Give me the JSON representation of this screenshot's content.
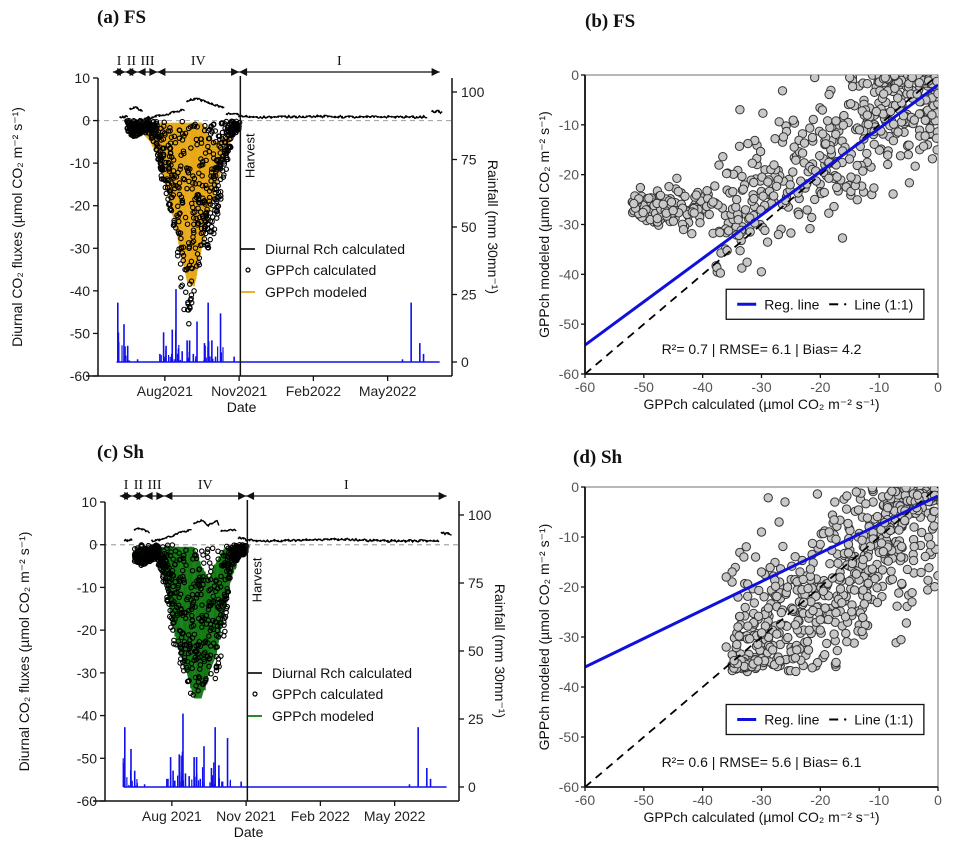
{
  "figure": {
    "panels": [
      {
        "id": "a",
        "title": "(a) FS"
      },
      {
        "id": "b",
        "title": "(b) FS"
      },
      {
        "id": "c",
        "title": "(c) Sh"
      },
      {
        "id": "d",
        "title": "(d) Sh"
      }
    ]
  },
  "colors": {
    "rch": "#000000",
    "gpp_calc_edge": "#000000",
    "gpp_model_fs": "#E8A917",
    "gpp_model_sh": "#137A13",
    "rainfall": "#1010EE",
    "reg_line": "#1010DD",
    "scatter_fill": "#C8C8C8",
    "scatter_edge": "#333333",
    "zero_line": "#AAAAAA"
  },
  "chart_data": [
    {
      "id": "a",
      "type": "line",
      "title": "(a) FS",
      "xlabel": "Date",
      "ylabel": "Diurnal CO₂ fluxes (µmol CO₂ m⁻² s⁻¹)",
      "y2label": "Rainfall (mm  30mn⁻¹)",
      "x_ticks": [
        "Aug2021",
        "Nov2021",
        "Feb2022",
        "May2022"
      ],
      "x_range_months": [
        5.3,
        19.6
      ],
      "x_tick_months": [
        8,
        11,
        14,
        17
      ],
      "ylim": [
        -60,
        10
      ],
      "y_ticks": [
        10,
        0,
        -10,
        -20,
        -30,
        -40,
        -50,
        -60
      ],
      "y2lim": [
        0,
        100
      ],
      "y2_ticks": [
        100,
        75,
        50,
        25,
        0
      ],
      "phases": [
        {
          "label": "I",
          "start": 5.9,
          "end": 6.4
        },
        {
          "label": "II",
          "start": 6.4,
          "end": 6.9
        },
        {
          "label": "III",
          "start": 6.9,
          "end": 7.7
        },
        {
          "label": "IV",
          "start": 7.7,
          "end": 11.0
        },
        {
          "label": "I",
          "start": 11.0,
          "end": 19.1
        }
      ],
      "harvest_label": "Harvest",
      "harvest_month": 11.05,
      "legend": [
        "Diurnal Rch calculated",
        "GPPch calculated",
        "GPPch modeled"
      ],
      "rch_segments": [
        {
          "x": [
            6.2,
            6.5
          ],
          "y": [
            0.8,
            0.9
          ]
        },
        {
          "x": [
            6.6,
            6.8,
            7.0,
            7.1
          ],
          "y": [
            2.8,
            3.2,
            2.5,
            2.0
          ]
        },
        {
          "x": [
            7.2,
            7.6,
            8.0,
            8.4,
            8.8
          ],
          "y": [
            0.5,
            0.9,
            1.3,
            2.0,
            2.6
          ]
        },
        {
          "x": [
            8.9,
            9.2,
            9.5,
            9.8,
            10.1,
            10.4
          ],
          "y": [
            4.5,
            5.2,
            4.8,
            4.0,
            3.5,
            3.1
          ]
        },
        {
          "x": [
            10.5,
            10.8,
            11.0
          ],
          "y": [
            1.5,
            1.6,
            1.4
          ]
        },
        {
          "x": [
            11.0,
            12,
            13,
            14,
            15,
            16,
            17,
            18,
            18.6
          ],
          "y": [
            1.0,
            0.8,
            0.9,
            1.0,
            0.9,
            0.8,
            0.9,
            0.8,
            0.9
          ]
        },
        {
          "x": [
            18.8,
            19.2
          ],
          "y": [
            2.2,
            2.0
          ]
        }
      ],
      "gpp_model_envelope": {
        "months": [
          6.5,
          6.8,
          7.1,
          7.4,
          7.7,
          8.0,
          8.3,
          8.6,
          8.9,
          9.2,
          9.5,
          9.8,
          10.1,
          10.4,
          10.7,
          11.0
        ],
        "upper": [
          -0.5,
          -0.5,
          -0.5,
          -0.5,
          -0.5,
          -0.5,
          -0.5,
          -0.5,
          -0.5,
          -0.5,
          -0.5,
          -4,
          -5,
          -4,
          -0.5,
          -0.5
        ],
        "lower": [
          -3,
          -4,
          -3,
          -5,
          -8,
          -14,
          -22,
          -30,
          -38,
          -39,
          -30,
          -22,
          -15,
          -10,
          -4,
          -1
        ]
      },
      "gpp_calc_envelope": {
        "months": [
          6.5,
          6.8,
          7.1,
          7.4,
          7.7,
          8.0,
          8.3,
          8.6,
          8.9,
          9.2,
          9.5,
          9.8,
          10.1,
          10.4,
          10.7,
          11.0
        ],
        "upper": [
          0,
          0,
          0,
          0,
          0,
          0,
          0,
          0,
          0,
          0,
          0,
          0,
          0,
          0,
          0,
          0
        ],
        "lower": [
          -3,
          -4,
          -3,
          -3,
          -8,
          -17,
          -24,
          -36,
          -50,
          -40,
          -32,
          -30,
          -24,
          -14,
          -4,
          -2
        ]
      },
      "rainfall": {
        "months": [
          6.1,
          6.35,
          6.5,
          6.9,
          7.8,
          7.95,
          8.05,
          8.3,
          8.45,
          8.55,
          8.7,
          8.9,
          9.0,
          9.15,
          9.3,
          9.6,
          9.75,
          9.9,
          10.05,
          10.25,
          10.8,
          17.6,
          17.95,
          18.3,
          18.45
        ],
        "mm": [
          22,
          14,
          6,
          1,
          3,
          11,
          6,
          12,
          27,
          5,
          4,
          8,
          8,
          3,
          15,
          7,
          22,
          8,
          2,
          18,
          2,
          1,
          22,
          7,
          3
        ]
      }
    },
    {
      "id": "b",
      "type": "scatter",
      "title": "(b) FS",
      "xlabel": "GPPch calculated (µmol CO₂ m⁻² s⁻¹)",
      "ylabel": "GPPch modeled (µmol CO₂ m⁻² s⁻¹)",
      "xlim": [
        -60,
        0
      ],
      "ylim": [
        -60,
        0
      ],
      "x_ticks": [
        -60,
        -50,
        -40,
        -30,
        -20,
        -10,
        0
      ],
      "y_ticks": [
        0,
        -10,
        -20,
        -30,
        -40,
        -50,
        -60
      ],
      "regression": {
        "slope": 0.87,
        "intercept": -2.0
      },
      "legend": [
        "Reg. line",
        "Line (1:1)"
      ],
      "stats_text": "R²= 0.7 | RMSE= 6.1 | Bias= 4.2",
      "point_cloud": {
        "description": "dense cloud along regression line",
        "x_range": [
          -52,
          0
        ],
        "y_range": [
          -40,
          0
        ]
      }
    },
    {
      "id": "c",
      "type": "line",
      "title": "(c) Sh",
      "xlabel": "Date",
      "ylabel": "Diurnal CO₂ fluxes (µmol CO₂ m⁻² s⁻¹)",
      "y2label": "Rainfall (mm  30mn⁻¹)",
      "x_ticks": [
        "Aug 2021",
        "Nov 2021",
        "Feb 2022",
        "May 2022"
      ],
      "x_range_months": [
        5.3,
        19.6
      ],
      "x_tick_months": [
        8,
        11,
        14,
        17
      ],
      "ylim": [
        -60,
        10
      ],
      "y_ticks": [
        10,
        0,
        -10,
        -20,
        -30,
        -40,
        -50,
        -60
      ],
      "y2lim": [
        0,
        100
      ],
      "y2_ticks": [
        100,
        75,
        50,
        25,
        0
      ],
      "phases": [
        {
          "label": "I",
          "start": 5.9,
          "end": 6.4
        },
        {
          "label": "II",
          "start": 6.4,
          "end": 6.9
        },
        {
          "label": "III",
          "start": 6.9,
          "end": 7.7
        },
        {
          "label": "IV",
          "start": 7.7,
          "end": 11.0
        },
        {
          "label": "I",
          "start": 11.0,
          "end": 19.1
        }
      ],
      "harvest_label": "Harvest",
      "harvest_month": 11.05,
      "legend": [
        "Diurnal Rch calculated",
        "GPPch calculated",
        "GPPch modeled"
      ],
      "rch_segments": [
        {
          "x": [
            6.1,
            6.4
          ],
          "y": [
            1.0,
            1.1
          ]
        },
        {
          "x": [
            6.5,
            6.7,
            7.0,
            7.1
          ],
          "y": [
            3.5,
            3.8,
            3.0,
            2.8
          ]
        },
        {
          "x": [
            7.2,
            7.6,
            8.0,
            8.4,
            8.8
          ],
          "y": [
            1.0,
            1.3,
            2.0,
            3.0,
            3.4
          ]
        },
        {
          "x": [
            8.9,
            9.2,
            9.5,
            9.8,
            9.9
          ],
          "y": [
            5.0,
            5.8,
            4.5,
            5.6,
            4.8
          ]
        },
        {
          "x": [
            10.0,
            10.3,
            10.6
          ],
          "y": [
            3.2,
            3.4,
            3.3
          ]
        },
        {
          "x": [
            10.7,
            11.0
          ],
          "y": [
            1.5,
            1.4
          ]
        },
        {
          "x": [
            11.0,
            12,
            13,
            14,
            15,
            16,
            17,
            18,
            18.8
          ],
          "y": [
            1.0,
            0.9,
            1.0,
            1.2,
            1.3,
            1.0,
            0.9,
            0.9,
            1.0
          ]
        },
        {
          "x": [
            18.9,
            19.3
          ],
          "y": [
            2.8,
            2.4
          ]
        }
      ],
      "gpp_model_envelope": {
        "months": [
          6.5,
          6.8,
          7.1,
          7.4,
          7.7,
          8.0,
          8.3,
          8.6,
          8.9,
          9.2,
          9.5,
          9.8,
          10.1,
          10.4,
          10.7,
          11.0
        ],
        "upper": [
          -0.5,
          -0.5,
          -0.5,
          -0.5,
          -0.5,
          -0.5,
          -0.5,
          -0.5,
          -0.5,
          -5,
          -8,
          -4,
          -1,
          -0.5,
          -0.5,
          -0.5
        ],
        "lower": [
          -3,
          -4,
          -3,
          -3,
          -8,
          -18,
          -25,
          -30,
          -36,
          -36,
          -30,
          -26,
          -16,
          -8,
          -3,
          -1
        ]
      },
      "gpp_calc_envelope": {
        "months": [
          6.5,
          6.8,
          7.1,
          7.4,
          7.7,
          8.0,
          8.3,
          8.6,
          8.9,
          9.2,
          9.5,
          9.8,
          10.1,
          10.4,
          10.7,
          11.0
        ],
        "upper": [
          0,
          0,
          0,
          0,
          0,
          0,
          0,
          0,
          0,
          0,
          0,
          0,
          0,
          0,
          0,
          0
        ],
        "lower": [
          -4,
          -5,
          -4,
          -3,
          -9,
          -22,
          -28,
          -32,
          -37,
          -34,
          -32,
          -32,
          -22,
          -5,
          -3,
          -2
        ]
      },
      "rainfall": {
        "months": [
          6.1,
          6.35,
          6.5,
          6.9,
          7.8,
          7.95,
          8.05,
          8.3,
          8.45,
          8.55,
          8.7,
          8.9,
          9.0,
          9.15,
          9.3,
          9.6,
          9.75,
          9.9,
          10.05,
          10.25,
          10.8,
          17.6,
          17.95,
          18.3,
          18.45
        ],
        "mm": [
          22,
          14,
          6,
          1,
          3,
          11,
          6,
          12,
          27,
          5,
          4,
          11,
          11,
          3,
          15,
          7,
          22,
          8,
          2,
          18,
          2,
          1,
          22,
          7,
          3
        ]
      }
    },
    {
      "id": "d",
      "type": "scatter",
      "title": "(d) Sh",
      "xlabel": "GPPch calculated (µmol CO₂ m⁻² s⁻¹)",
      "ylabel": "GPPch modeled (µmol CO₂ m⁻² s⁻¹)",
      "xlim": [
        -60,
        0
      ],
      "ylim": [
        -60,
        0
      ],
      "x_ticks": [
        -60,
        -50,
        -40,
        -30,
        -20,
        -10,
        0
      ],
      "y_ticks": [
        0,
        -10,
        -20,
        -30,
        -40,
        -50,
        -60
      ],
      "regression": {
        "slope": 0.57,
        "intercept": -1.8
      },
      "legend": [
        "Reg. line",
        "Line (1:1)"
      ],
      "stats_text": "R²= 0.6 | RMSE= 5.6 | Bias= 6.1",
      "point_cloud": {
        "description": "dense cloud, mostly x in [-35,0], y in [-37,0]",
        "x_range": [
          -38,
          0
        ],
        "y_range": [
          -37,
          0
        ]
      }
    }
  ]
}
